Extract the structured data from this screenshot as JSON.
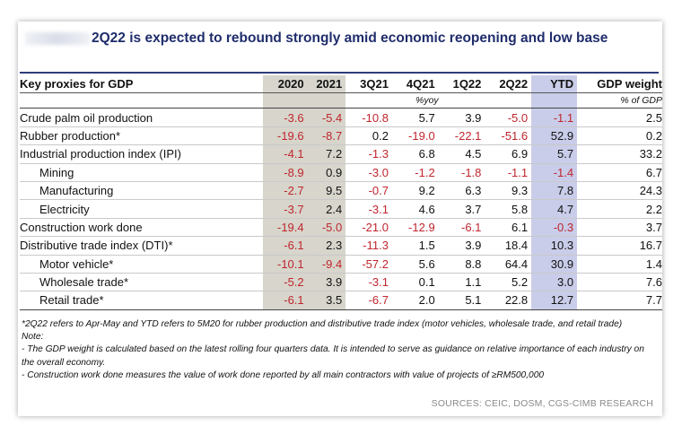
{
  "title": "2Q22 is expected to rebound strongly amid economic reopening and low base",
  "title_prefix_obscured": true,
  "colors": {
    "title": "#1f2d6b",
    "negative": "#c0262d",
    "ytd_column": "#c9cde9",
    "period_columns": "#d7d5cc"
  },
  "table": {
    "header": {
      "label": "Key proxies for GDP",
      "periods": [
        "2020",
        "2021",
        "3Q21",
        "4Q21",
        "1Q22",
        "2Q22"
      ],
      "ytd": "YTD",
      "weight": "GDP weight",
      "unit_periods": "%yoy",
      "unit_weight": "% of GDP"
    },
    "rows": [
      {
        "label": "Crude palm oil production",
        "indent": false,
        "values": [
          "-3.6",
          "-5.4",
          "-10.8",
          "5.7",
          "3.9",
          "-5.0",
          "-1.1"
        ],
        "weight": "2.5"
      },
      {
        "label": "Rubber production*",
        "indent": false,
        "values": [
          "-19.6",
          "-8.7",
          "0.2",
          "-19.0",
          "-22.1",
          "-51.6",
          "52.9"
        ],
        "weight": "0.2"
      },
      {
        "label": "Industrial production index (IPI)",
        "indent": false,
        "values": [
          "-4.1",
          "7.2",
          "-1.3",
          "6.8",
          "4.5",
          "6.9",
          "5.7"
        ],
        "weight": "33.2"
      },
      {
        "label": "Mining",
        "indent": true,
        "values": [
          "-8.9",
          "0.9",
          "-3.0",
          "-1.2",
          "-1.8",
          "-1.1",
          "-1.4"
        ],
        "weight": "6.7"
      },
      {
        "label": "Manufacturing",
        "indent": true,
        "values": [
          "-2.7",
          "9.5",
          "-0.7",
          "9.2",
          "6.3",
          "9.3",
          "7.8"
        ],
        "weight": "24.3"
      },
      {
        "label": "Electricity",
        "indent": true,
        "values": [
          "-3.7",
          "2.4",
          "-3.1",
          "4.6",
          "3.7",
          "5.8",
          "4.7"
        ],
        "weight": "2.2"
      },
      {
        "label": "Construction work done",
        "indent": false,
        "values": [
          "-19.4",
          "-5.0",
          "-21.0",
          "-12.9",
          "-6.1",
          "6.1",
          "-0.3"
        ],
        "weight": "3.7"
      },
      {
        "label": "Distributive trade index (DTI)*",
        "indent": false,
        "values": [
          "-6.1",
          "2.3",
          "-11.3",
          "1.5",
          "3.9",
          "18.4",
          "10.3"
        ],
        "weight": "16.7"
      },
      {
        "label": "Motor vehicle*",
        "indent": true,
        "values": [
          "-10.1",
          "-9.4",
          "-57.2",
          "5.6",
          "8.8",
          "64.4",
          "30.9"
        ],
        "weight": "1.4"
      },
      {
        "label": "Wholesale trade*",
        "indent": true,
        "values": [
          "-5.2",
          "3.9",
          "-3.1",
          "0.1",
          "1.1",
          "5.2",
          "3.0"
        ],
        "weight": "7.6"
      },
      {
        "label": "Retail trade*",
        "indent": true,
        "values": [
          "-6.1",
          "3.5",
          "-6.7",
          "2.0",
          "5.1",
          "22.8",
          "12.7"
        ],
        "weight": "7.7"
      }
    ]
  },
  "notes": [
    "*2Q22 refers to Apr-May and YTD refers to 5M20 for rubber production and distributive trade index (motor vehicles, wholesale trade, and retail trade)",
    "Note:",
    "- The GDP weight is calculated based on the latest rolling four quarters data. It is intended to serve as guidance on relative importance of each industry on the overall economy.",
    "- Construction work done measures the value of work done reported by all main contractors with value of projects of ≥RM500,000"
  ],
  "sources": "SOURCES: CEIC, DOSM, CGS-CIMB RESEARCH"
}
